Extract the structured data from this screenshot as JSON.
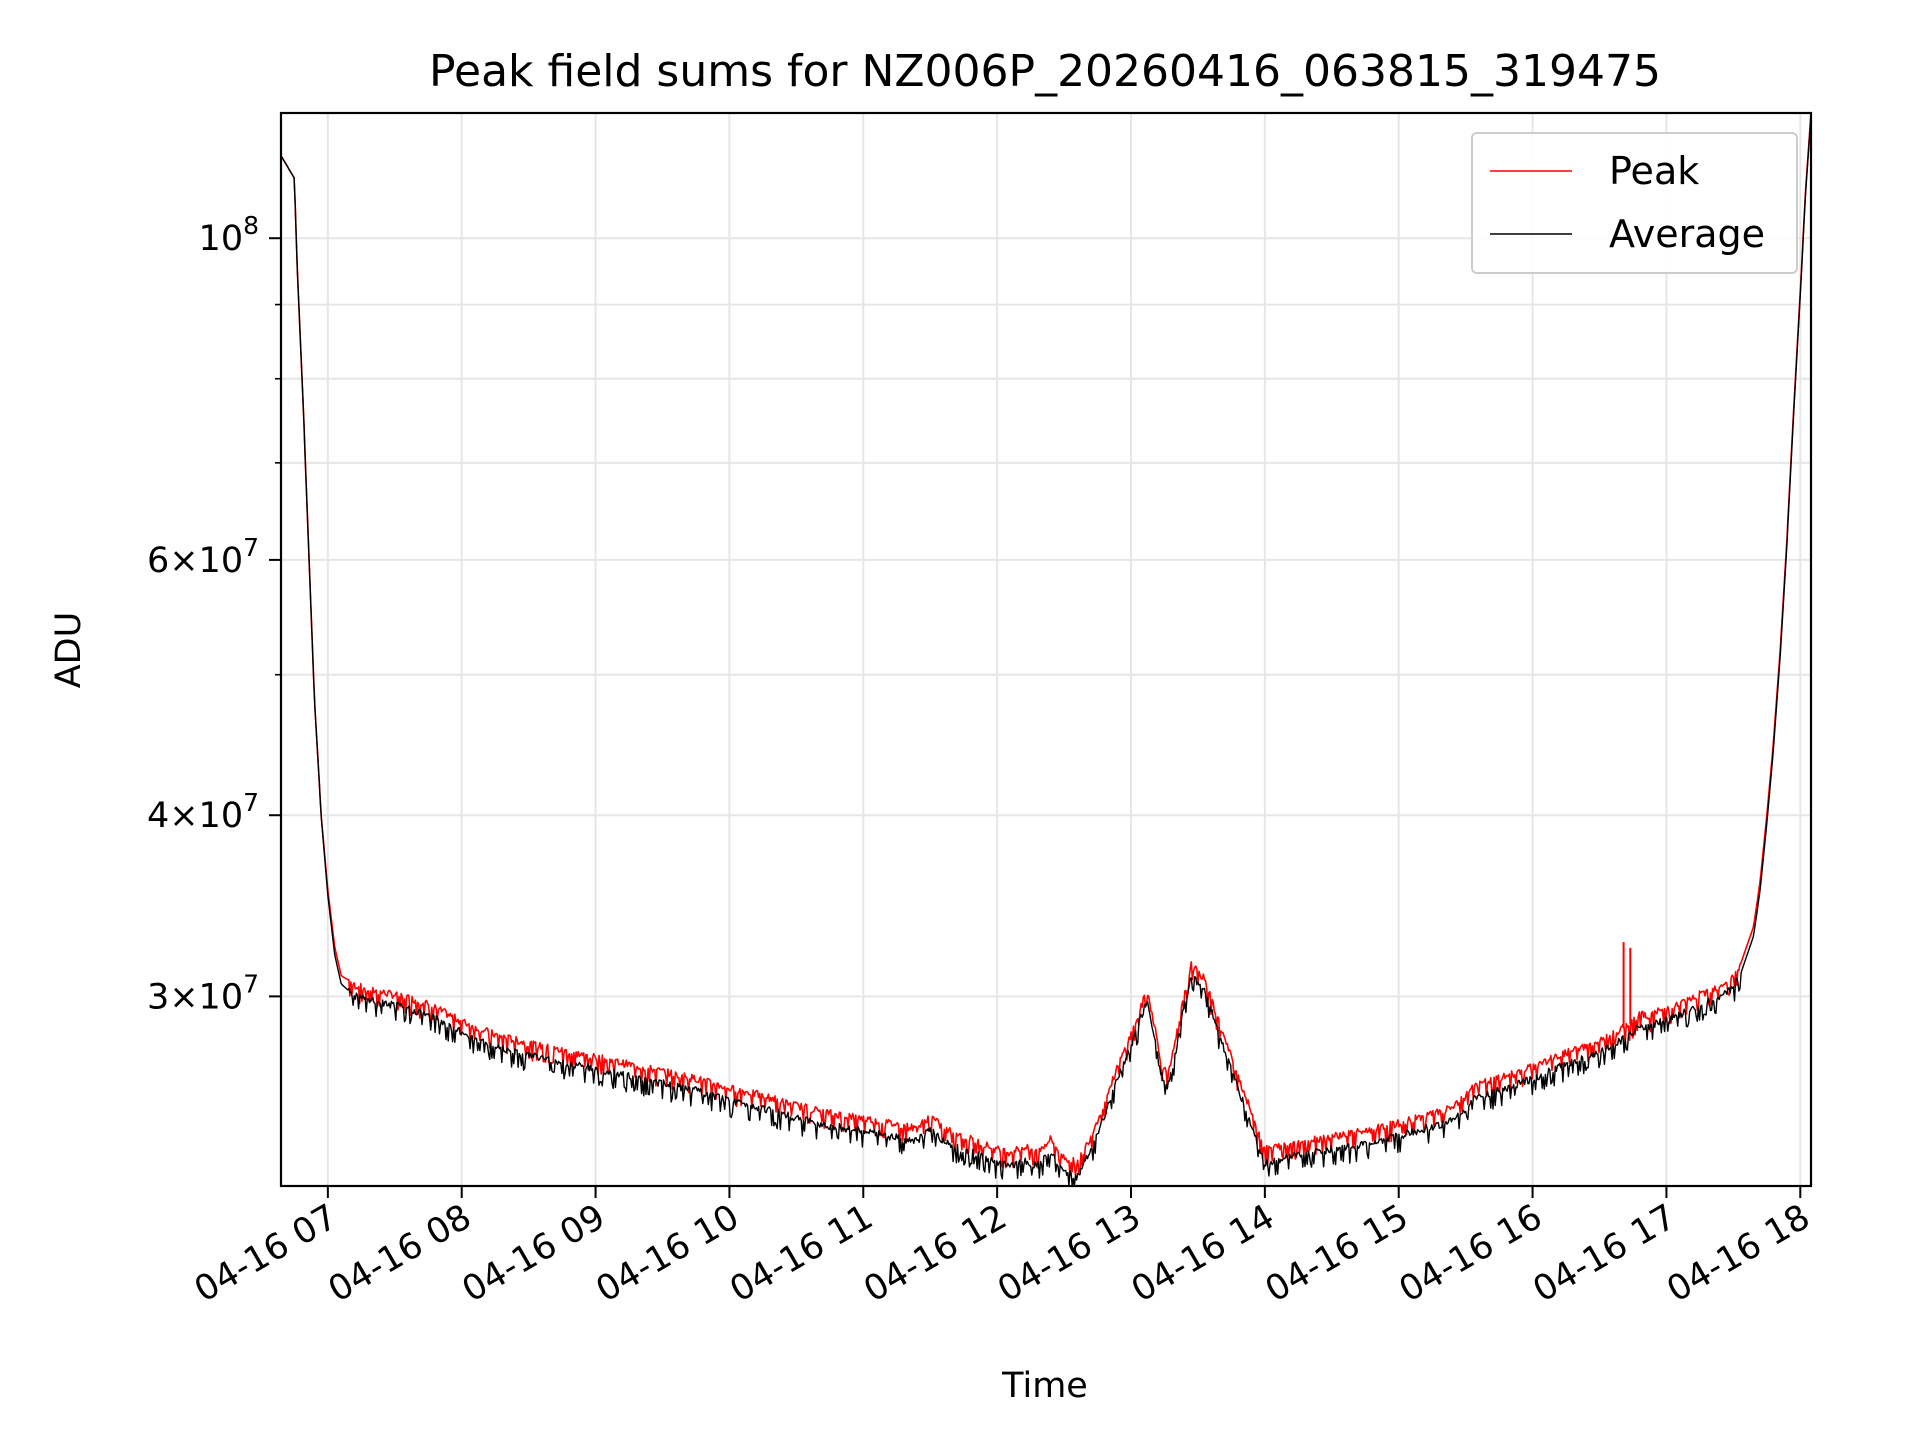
{
  "chart_data": {
    "type": "line",
    "title": "Peak field sums for NZ006P_20260416_063815_319475",
    "xlabel": "Time",
    "ylabel": "ADU",
    "yscale": "log",
    "xlim": [
      6.65,
      18.08
    ],
    "ylim": [
      22200000,
      122000000
    ],
    "grid": true,
    "legend_position": "top-right",
    "x_ticks": [
      {
        "value": 7,
        "label": "04-16 07"
      },
      {
        "value": 8,
        "label": "04-16 08"
      },
      {
        "value": 9,
        "label": "04-16 09"
      },
      {
        "value": 10,
        "label": "04-16 10"
      },
      {
        "value": 11,
        "label": "04-16 11"
      },
      {
        "value": 12,
        "label": "04-16 12"
      },
      {
        "value": 13,
        "label": "04-16 13"
      },
      {
        "value": 14,
        "label": "04-16 14"
      },
      {
        "value": 15,
        "label": "04-16 15"
      },
      {
        "value": 16,
        "label": "04-16 16"
      },
      {
        "value": 17,
        "label": "04-16 17"
      },
      {
        "value": 18,
        "label": "04-16 18"
      }
    ],
    "y_ticks_major": [
      {
        "value": 100000000,
        "mantissa": "",
        "exponent": "8"
      },
      {
        "value": 60000000,
        "mantissa": "6",
        "exponent": "7"
      },
      {
        "value": 40000000,
        "mantissa": "4",
        "exponent": "7"
      },
      {
        "value": 30000000,
        "mantissa": "3",
        "exponent": "7"
      }
    ],
    "y_ticks_minor": [
      90000000,
      80000000,
      70000000,
      50000000
    ],
    "series": [
      {
        "name": "Peak",
        "color": "#ff0000",
        "x": [
          6.65,
          6.75,
          6.77,
          6.82,
          6.86,
          6.9,
          6.95,
          7.0,
          7.05,
          7.1,
          7.15,
          7.2,
          7.3,
          7.45,
          7.6,
          7.75,
          8.0,
          8.25,
          8.5,
          8.75,
          9.0,
          9.25,
          9.5,
          9.75,
          10.0,
          10.25,
          10.5,
          10.75,
          11.0,
          11.2,
          11.4,
          11.5,
          11.6,
          11.75,
          11.9,
          12.0,
          12.1,
          12.2,
          12.3,
          12.4,
          12.5,
          12.6,
          12.7,
          12.8,
          12.9,
          12.95,
          13.0,
          13.05,
          13.12,
          13.18,
          13.22,
          13.27,
          13.32,
          13.38,
          13.45,
          13.55,
          13.7,
          14.0,
          14.25,
          14.5,
          14.75,
          15.0,
          15.2,
          15.35,
          15.45,
          15.5,
          15.55,
          15.75,
          16.0,
          16.25,
          16.5,
          16.65,
          16.75,
          16.8,
          16.85,
          16.95,
          17.1,
          17.2,
          17.3,
          17.4,
          17.5,
          17.55,
          17.65,
          17.7,
          17.75,
          17.8,
          17.85,
          17.9,
          17.95,
          18.0,
          18.04,
          18.08
        ],
        "y": [
          114000000,
          110000000,
          96000000,
          75000000,
          60000000,
          48000000,
          40000000,
          35500000,
          32500000,
          31000000,
          30800000,
          30500000,
          30300000,
          30100000,
          29900000,
          29600000,
          28800000,
          28200000,
          27800000,
          27500000,
          27200000,
          26900000,
          26600000,
          26300000,
          25900000,
          25600000,
          25200000,
          24900000,
          24700000,
          24500000,
          24300000,
          24800000,
          24300000,
          24000000,
          23700000,
          23500000,
          23400000,
          23600000,
          23400000,
          23900000,
          23200000,
          23000000,
          24000000,
          25300000,
          26800000,
          27500000,
          28200000,
          29000000,
          30300000,
          28500000,
          27000000,
          26500000,
          27500000,
          29500000,
          31500000,
          30800000,
          28000000,
          23500000,
          23800000,
          24000000,
          24200000,
          24500000,
          24800000,
          25000000,
          25300000,
          25600000,
          26000000,
          26300000,
          26800000,
          27400000,
          27900000,
          28400000,
          28800000,
          29200000,
          29000000,
          29300000,
          29600000,
          29900000,
          30200000,
          30500000,
          30900000,
          31500000,
          33500000,
          36000000,
          40000000,
          45000000,
          52000000,
          62000000,
          76000000,
          92000000,
          108000000,
          122000000
        ]
      },
      {
        "name": "Average",
        "color": "#000000",
        "x": [
          6.65,
          6.75,
          6.77,
          6.82,
          6.86,
          6.9,
          6.95,
          7.0,
          7.05,
          7.1,
          7.15,
          7.2,
          7.3,
          7.45,
          7.6,
          7.75,
          8.0,
          8.25,
          8.5,
          8.75,
          9.0,
          9.25,
          9.5,
          9.75,
          10.0,
          10.25,
          10.5,
          10.75,
          11.0,
          11.2,
          11.4,
          11.5,
          11.6,
          11.75,
          11.9,
          12.0,
          12.1,
          12.2,
          12.3,
          12.4,
          12.5,
          12.6,
          12.7,
          12.8,
          12.9,
          12.95,
          13.0,
          13.05,
          13.12,
          13.18,
          13.22,
          13.27,
          13.32,
          13.38,
          13.45,
          13.55,
          13.7,
          14.0,
          14.25,
          14.5,
          14.75,
          15.0,
          15.2,
          15.35,
          15.45,
          15.5,
          15.55,
          15.75,
          16.0,
          16.25,
          16.5,
          16.65,
          16.75,
          16.8,
          16.85,
          16.95,
          17.1,
          17.2,
          17.3,
          17.4,
          17.5,
          17.55,
          17.65,
          17.7,
          17.75,
          17.8,
          17.85,
          17.9,
          17.95,
          18.0,
          18.04,
          18.08
        ],
        "y": [
          114000000,
          110000000,
          96000000,
          75000000,
          60000000,
          48000000,
          40000000,
          35200000,
          32100000,
          30600000,
          30300000,
          30000000,
          29800000,
          29600000,
          29400000,
          29100000,
          28300000,
          27700000,
          27300000,
          27000000,
          26700000,
          26400000,
          26100000,
          25800000,
          25400000,
          25100000,
          24700000,
          24400000,
          24200000,
          24000000,
          23800000,
          24300000,
          23800000,
          23500000,
          23200000,
          23000000,
          22900000,
          23100000,
          22900000,
          23400000,
          22700000,
          22500000,
          23500000,
          24800000,
          26300000,
          27000000,
          27700000,
          28500000,
          29800000,
          28000000,
          26500000,
          26000000,
          27000000,
          29000000,
          31000000,
          30300000,
          27500000,
          23000000,
          23300000,
          23500000,
          23700000,
          24000000,
          24300000,
          24500000,
          24800000,
          25100000,
          25500000,
          25800000,
          26300000,
          26900000,
          27400000,
          27900000,
          28300000,
          28700000,
          28500000,
          28800000,
          29100000,
          29400000,
          29700000,
          30000000,
          30400000,
          31000000,
          33000000,
          35500000,
          39500000,
          44500000,
          51500000,
          61500000,
          75500000,
          91500000,
          107500000,
          121500000
        ]
      }
    ],
    "spikes": [
      {
        "series": "Peak",
        "x": 16.68,
        "y": 32700000
      },
      {
        "series": "Peak",
        "x": 16.73,
        "y": 32400000
      }
    ]
  }
}
